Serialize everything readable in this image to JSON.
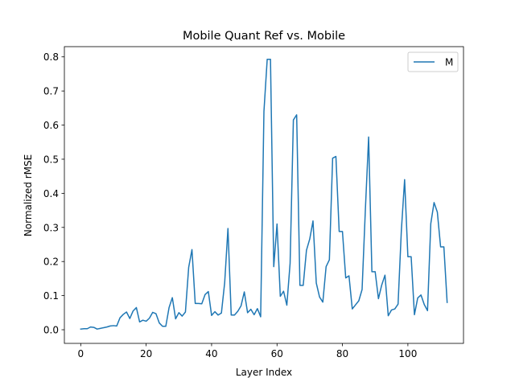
{
  "chart_data": {
    "type": "line",
    "title": "Mobile Quant Ref vs. Mobile",
    "xlabel": "Layer Index",
    "ylabel": "Normalized rMSE",
    "xlim": [
      -5,
      117
    ],
    "ylim": [
      -0.04,
      0.83
    ],
    "xticks": [
      0,
      20,
      40,
      60,
      80,
      100
    ],
    "yticks": [
      0.0,
      0.1,
      0.2,
      0.3,
      0.4,
      0.5,
      0.6,
      0.7,
      0.8
    ],
    "ytick_labels": [
      "0.0",
      "0.1",
      "0.2",
      "0.3",
      "0.4",
      "0.5",
      "0.6",
      "0.7",
      "0.8"
    ],
    "grid": false,
    "legend_position": "upper right",
    "series": [
      {
        "name": "M",
        "color": "#1f77b4",
        "x": [
          0,
          1,
          2,
          3,
          4,
          5,
          6,
          7,
          8,
          9,
          10,
          11,
          12,
          13,
          14,
          15,
          16,
          17,
          18,
          19,
          20,
          21,
          22,
          23,
          24,
          25,
          26,
          27,
          28,
          29,
          30,
          31,
          32,
          33,
          34,
          35,
          36,
          37,
          38,
          39,
          40,
          41,
          42,
          43,
          44,
          45,
          46,
          47,
          48,
          49,
          50,
          51,
          52,
          53,
          54,
          55,
          56,
          57,
          58,
          59,
          60,
          61,
          62,
          63,
          64,
          65,
          66,
          67,
          68,
          69,
          70,
          71,
          72,
          73,
          74,
          75,
          76,
          77,
          78,
          79,
          80,
          81,
          82,
          83,
          84,
          85,
          86,
          87,
          88,
          89,
          90,
          91,
          92,
          93,
          94,
          95,
          96,
          97,
          98,
          99,
          100,
          101,
          102,
          103,
          104,
          105,
          106,
          107,
          108,
          109,
          110,
          111,
          112
        ],
        "values": [
          0.002,
          0.003,
          0.003,
          0.008,
          0.007,
          0.002,
          0.004,
          0.006,
          0.008,
          0.011,
          0.012,
          0.011,
          0.035,
          0.045,
          0.052,
          0.033,
          0.055,
          0.065,
          0.023,
          0.028,
          0.025,
          0.034,
          0.051,
          0.047,
          0.02,
          0.01,
          0.01,
          0.065,
          0.094,
          0.032,
          0.05,
          0.04,
          0.052,
          0.183,
          0.235,
          0.077,
          0.077,
          0.076,
          0.103,
          0.112,
          0.042,
          0.053,
          0.043,
          0.049,
          0.138,
          0.297,
          0.043,
          0.043,
          0.054,
          0.07,
          0.111,
          0.05,
          0.06,
          0.044,
          0.062,
          0.038,
          0.64,
          0.793,
          0.793,
          0.185,
          0.31,
          0.098,
          0.113,
          0.072,
          0.195,
          0.615,
          0.63,
          0.13,
          0.13,
          0.233,
          0.266,
          0.319,
          0.137,
          0.096,
          0.081,
          0.185,
          0.205,
          0.503,
          0.508,
          0.288,
          0.288,
          0.152,
          0.158,
          0.061,
          0.073,
          0.085,
          0.118,
          0.351,
          0.565,
          0.17,
          0.17,
          0.091,
          0.131,
          0.16,
          0.041,
          0.058,
          0.061,
          0.075,
          0.29,
          0.44,
          0.214,
          0.214,
          0.044,
          0.093,
          0.102,
          0.074,
          0.056,
          0.311,
          0.373,
          0.345,
          0.243,
          0.243,
          0.08
        ]
      }
    ]
  }
}
